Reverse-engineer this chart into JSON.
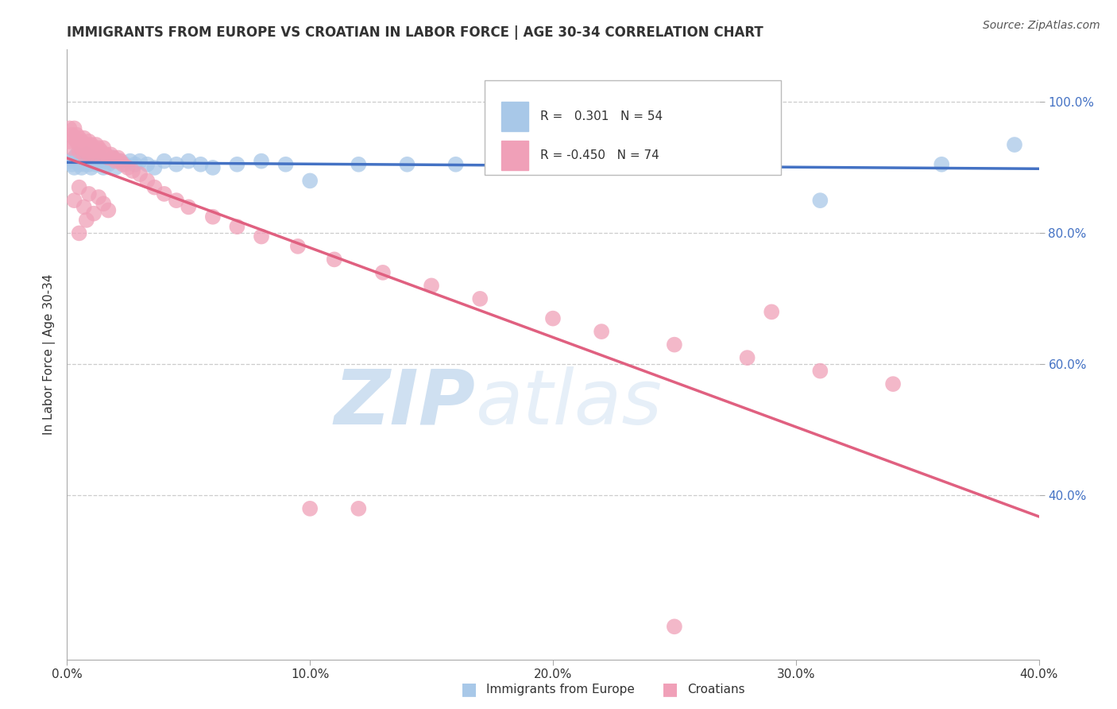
{
  "title": "IMMIGRANTS FROM EUROPE VS CROATIAN IN LABOR FORCE | AGE 30-34 CORRELATION CHART",
  "source": "Source: ZipAtlas.com",
  "ylabel": "In Labor Force | Age 30-34",
  "xlim": [
    0.0,
    0.4
  ],
  "ylim": [
    0.15,
    1.08
  ],
  "xticks": [
    0.0,
    0.1,
    0.2,
    0.3,
    0.4
  ],
  "xtick_labels": [
    "0.0%",
    "10.0%",
    "20.0%",
    "30.0%",
    "40.0%"
  ],
  "yticks_right": [
    0.4,
    0.6,
    0.8,
    1.0
  ],
  "ytick_labels_right": [
    "40.0%",
    "60.0%",
    "80.0%",
    "100.0%"
  ],
  "blue_color": "#A8C8E8",
  "pink_color": "#F0A0B8",
  "blue_line_color": "#4472C4",
  "pink_line_color": "#E06080",
  "blue_R": 0.301,
  "blue_N": 54,
  "pink_R": -0.45,
  "pink_N": 74,
  "watermark_zip": "ZIP",
  "watermark_atlas": "atlas",
  "legend_bottom_blue": "Immigrants from Europe",
  "legend_bottom_pink": "Croatians",
  "background_color": "#FFFFFF",
  "grid_color": "#CCCCCC",
  "blue_scatter_x": [
    0.001,
    0.002,
    0.003,
    0.003,
    0.004,
    0.004,
    0.005,
    0.005,
    0.006,
    0.006,
    0.007,
    0.007,
    0.008,
    0.008,
    0.009,
    0.009,
    0.01,
    0.01,
    0.011,
    0.012,
    0.013,
    0.014,
    0.015,
    0.016,
    0.017,
    0.018,
    0.019,
    0.02,
    0.022,
    0.024,
    0.026,
    0.028,
    0.03,
    0.033,
    0.036,
    0.04,
    0.045,
    0.05,
    0.055,
    0.06,
    0.07,
    0.08,
    0.09,
    0.1,
    0.12,
    0.14,
    0.16,
    0.18,
    0.2,
    0.22,
    0.26,
    0.31,
    0.36,
    0.39
  ],
  "blue_scatter_y": [
    0.91,
    0.905,
    0.915,
    0.9,
    0.91,
    0.92,
    0.905,
    0.915,
    0.91,
    0.9,
    0.915,
    0.905,
    0.91,
    0.92,
    0.905,
    0.91,
    0.915,
    0.9,
    0.91,
    0.905,
    0.91,
    0.915,
    0.9,
    0.91,
    0.905,
    0.91,
    0.915,
    0.9,
    0.91,
    0.905,
    0.91,
    0.905,
    0.91,
    0.905,
    0.9,
    0.91,
    0.905,
    0.91,
    0.905,
    0.9,
    0.905,
    0.91,
    0.905,
    0.88,
    0.905,
    0.905,
    0.905,
    0.905,
    0.905,
    0.905,
    0.905,
    0.85,
    0.905,
    0.935
  ],
  "pink_scatter_x": [
    0.001,
    0.001,
    0.002,
    0.002,
    0.003,
    0.003,
    0.004,
    0.004,
    0.005,
    0.005,
    0.005,
    0.006,
    0.006,
    0.007,
    0.007,
    0.008,
    0.008,
    0.009,
    0.009,
    0.01,
    0.01,
    0.011,
    0.011,
    0.012,
    0.012,
    0.013,
    0.013,
    0.014,
    0.015,
    0.015,
    0.016,
    0.017,
    0.018,
    0.019,
    0.02,
    0.021,
    0.022,
    0.023,
    0.025,
    0.027,
    0.03,
    0.033,
    0.036,
    0.04,
    0.045,
    0.05,
    0.06,
    0.07,
    0.08,
    0.095,
    0.11,
    0.13,
    0.15,
    0.17,
    0.2,
    0.22,
    0.25,
    0.28,
    0.31,
    0.34,
    0.003,
    0.005,
    0.007,
    0.009,
    0.011,
    0.013,
    0.015,
    0.017,
    0.005,
    0.008,
    0.1,
    0.12,
    0.25,
    0.29
  ],
  "pink_scatter_y": [
    0.96,
    0.94,
    0.95,
    0.93,
    0.945,
    0.96,
    0.94,
    0.95,
    0.935,
    0.945,
    0.925,
    0.94,
    0.93,
    0.945,
    0.92,
    0.935,
    0.925,
    0.94,
    0.92,
    0.935,
    0.925,
    0.93,
    0.92,
    0.925,
    0.935,
    0.92,
    0.93,
    0.925,
    0.92,
    0.93,
    0.92,
    0.915,
    0.92,
    0.915,
    0.91,
    0.915,
    0.91,
    0.905,
    0.9,
    0.895,
    0.89,
    0.88,
    0.87,
    0.86,
    0.85,
    0.84,
    0.825,
    0.81,
    0.795,
    0.78,
    0.76,
    0.74,
    0.72,
    0.7,
    0.67,
    0.65,
    0.63,
    0.61,
    0.59,
    0.57,
    0.85,
    0.87,
    0.84,
    0.86,
    0.83,
    0.855,
    0.845,
    0.835,
    0.8,
    0.82,
    0.38,
    0.38,
    0.2,
    0.68
  ]
}
